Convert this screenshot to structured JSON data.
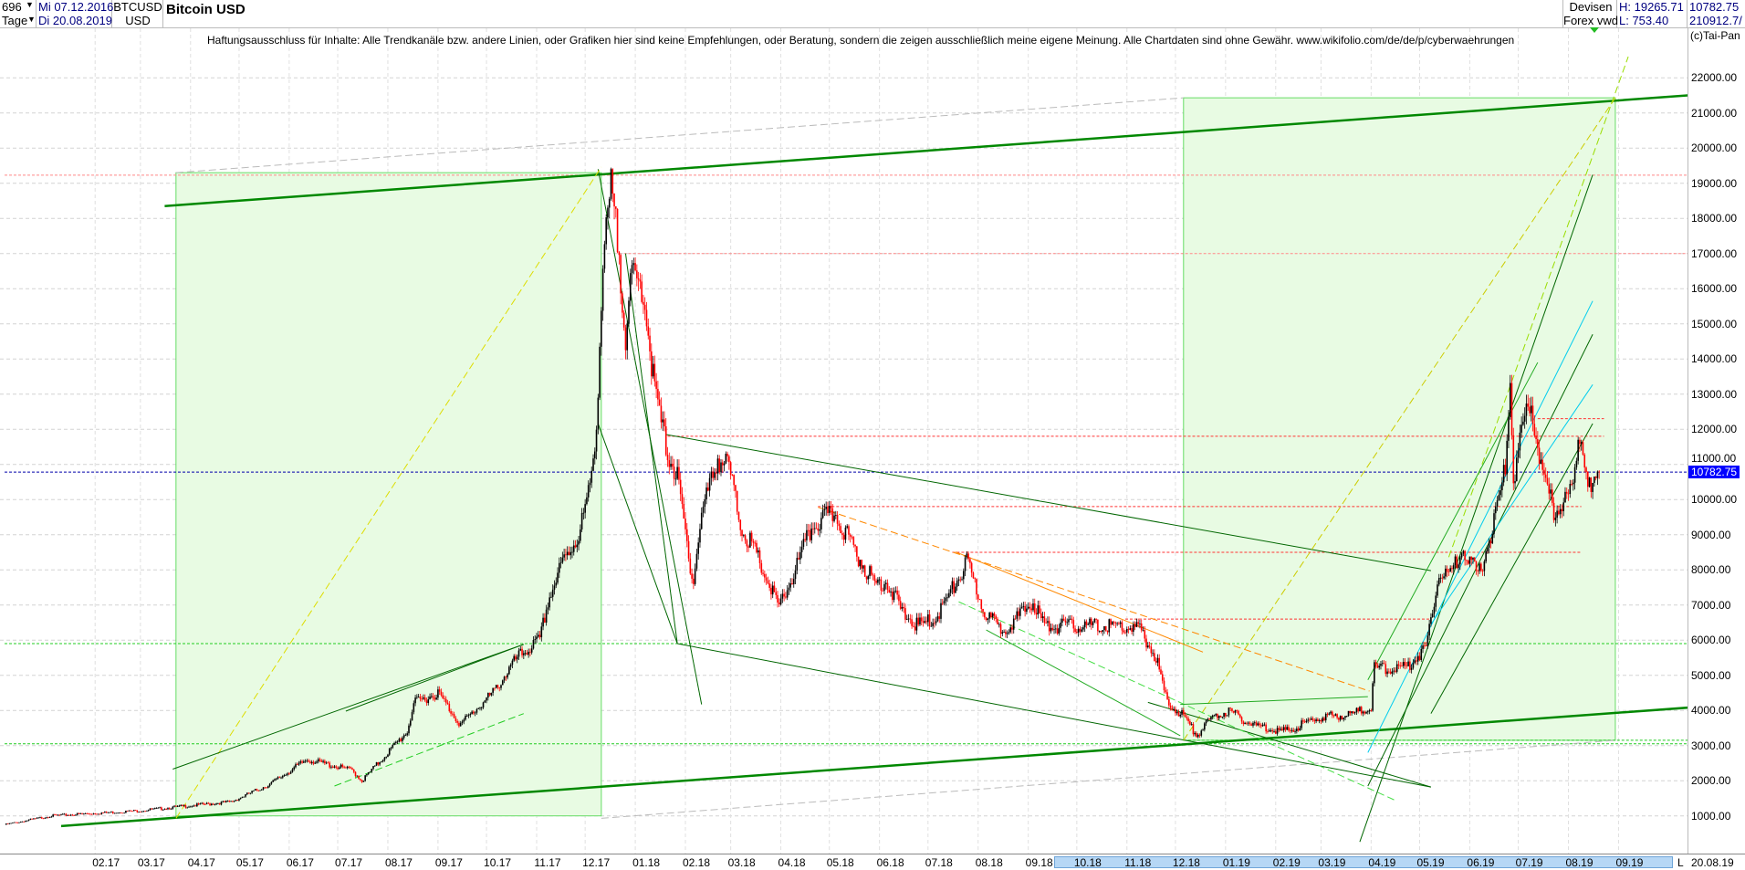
{
  "header": {
    "bar_count": "696",
    "period": "Tage",
    "start_date": "Mi 07.12.2016",
    "end_date": "Di 20.08.2019",
    "symbol": "BTCUSD",
    "currency": "USD",
    "title": "Bitcoin USD",
    "market": "Devisen",
    "source": "Forex vwd",
    "high": "H: 19265.71",
    "low": "L: 753.40",
    "last_price": "10782.75",
    "volume": "210912.7/",
    "copyright": "(c)Tai-Pan"
  },
  "disclaimer": "Haftungsausschluss für Inhalte: Alle Trendkanäle bzw. andere Linien, oder Grafiken hier sind keine Empfehlungen, oder Beratung, sondern die zeigen ausschließlich meine eigene Meinung. Alle Chartdaten sind ohne Gewähr.  www.wikifolio.com/de/de/p/cyberwaehrungen",
  "bottom_axis": {
    "end_label": "20.08.19",
    "scroll_marker": "L"
  },
  "chart_data": {
    "type": "candlestick",
    "title": "Bitcoin USD",
    "x_range": [
      "2016-12-07",
      "2019-08-20"
    ],
    "ylim": [
      0,
      23000
    ],
    "y_ticks": [
      "1000.00",
      "2000.00",
      "3000.00",
      "4000.00",
      "5000.00",
      "6000.00",
      "7000.00",
      "8000.00",
      "9000.00",
      "10000.00",
      "11000.00",
      "12000.00",
      "13000.00",
      "14000.00",
      "15000.00",
      "16000.00",
      "17000.00",
      "18000.00",
      "19000.00",
      "20000.00",
      "21000.00",
      "22000.00"
    ],
    "x_ticks": [
      {
        "label": "02.17",
        "date": "2017-02-01"
      },
      {
        "label": "03.17",
        "date": "2017-03-01"
      },
      {
        "label": "04.17",
        "date": "2017-04-01"
      },
      {
        "label": "05.17",
        "date": "2017-05-01"
      },
      {
        "label": "06.17",
        "date": "2017-06-01"
      },
      {
        "label": "07.17",
        "date": "2017-07-01"
      },
      {
        "label": "08.17",
        "date": "2017-08-01"
      },
      {
        "label": "09.17",
        "date": "2017-09-01"
      },
      {
        "label": "10.17",
        "date": "2017-10-01"
      },
      {
        "label": "11.17",
        "date": "2017-11-01"
      },
      {
        "label": "12.17",
        "date": "2017-12-01"
      },
      {
        "label": "01.18",
        "date": "2018-01-01"
      },
      {
        "label": "02.18",
        "date": "2018-02-01"
      },
      {
        "label": "03.18",
        "date": "2018-03-01"
      },
      {
        "label": "04.18",
        "date": "2018-04-01"
      },
      {
        "label": "05.18",
        "date": "2018-05-01"
      },
      {
        "label": "06.18",
        "date": "2018-06-01"
      },
      {
        "label": "07.18",
        "date": "2018-07-01"
      },
      {
        "label": "08.18",
        "date": "2018-08-01"
      },
      {
        "label": "09.18",
        "date": "2018-09-01"
      },
      {
        "label": "10.18",
        "date": "2018-10-01"
      },
      {
        "label": "11.18",
        "date": "2018-11-01"
      },
      {
        "label": "12.18",
        "date": "2018-12-01"
      },
      {
        "label": "01.19",
        "date": "2019-01-01"
      },
      {
        "label": "02.19",
        "date": "2019-02-01"
      },
      {
        "label": "03.19",
        "date": "2019-03-01"
      },
      {
        "label": "04.19",
        "date": "2019-04-01"
      },
      {
        "label": "05.19",
        "date": "2019-05-01"
      },
      {
        "label": "06.19",
        "date": "2019-06-01"
      },
      {
        "label": "07.19",
        "date": "2019-07-01"
      },
      {
        "label": "08.19",
        "date": "2019-08-01"
      },
      {
        "label": "09.19",
        "date": "2019-09-01"
      }
    ],
    "grid": true,
    "colors": {
      "up": "#000000",
      "down": "#ff0000",
      "last_price": "#0000ff"
    },
    "close_path": [
      [
        "2016-12-07",
        750
      ],
      [
        "2017-01-05",
        1000
      ],
      [
        "2017-03-01",
        1150
      ],
      [
        "2017-04-26",
        1400
      ],
      [
        "2017-05-20",
        1900
      ],
      [
        "2017-06-12",
        2600
      ],
      [
        "2017-07-10",
        2300
      ],
      [
        "2017-07-16",
        2000
      ],
      [
        "2017-07-30",
        2700
      ],
      [
        "2017-08-13",
        3400
      ],
      [
        "2017-08-17",
        4200
      ],
      [
        "2017-09-01",
        4500
      ],
      [
        "2017-09-15",
        3600
      ],
      [
        "2017-10-05",
        4500
      ],
      [
        "2017-10-20",
        5500
      ],
      [
        "2017-11-03",
        6000
      ],
      [
        "2017-11-08",
        7100
      ],
      [
        "2017-11-17",
        8200
      ],
      [
        "2017-11-27",
        9000
      ],
      [
        "2017-12-04",
        10300
      ],
      [
        "2017-12-08",
        12200
      ],
      [
        "2017-12-12",
        16600
      ],
      [
        "2017-12-17",
        18800
      ],
      [
        "2017-12-22",
        17000
      ],
      [
        "2017-12-26",
        14700
      ],
      [
        "2017-12-30",
        16300
      ],
      [
        "2018-01-06",
        16000
      ],
      [
        "2018-01-13",
        13100
      ],
      [
        "2018-01-20",
        11500
      ],
      [
        "2018-01-27",
        10600
      ],
      [
        "2018-02-03",
        8400
      ],
      [
        "2018-02-06",
        7700
      ],
      [
        "2018-02-11",
        9600
      ],
      [
        "2018-02-21",
        11200
      ],
      [
        "2018-02-28",
        10900
      ],
      [
        "2018-03-07",
        9300
      ],
      [
        "2018-03-17",
        8400
      ],
      [
        "2018-03-31",
        6900
      ],
      [
        "2018-04-10",
        8000
      ],
      [
        "2018-04-21",
        9300
      ],
      [
        "2018-05-05",
        9600
      ],
      [
        "2018-05-15",
        8700
      ],
      [
        "2018-05-29",
        7600
      ],
      [
        "2018-06-05",
        7700
      ],
      [
        "2018-06-15",
        6800
      ],
      [
        "2018-06-25",
        6400
      ],
      [
        "2018-07-05",
        6600
      ],
      [
        "2018-07-12",
        7100
      ],
      [
        "2018-07-25",
        8200
      ],
      [
        "2018-08-05",
        6800
      ],
      [
        "2018-08-15",
        6300
      ],
      [
        "2018-08-25",
        6600
      ],
      [
        "2018-09-04",
        7100
      ],
      [
        "2018-09-11",
        6400
      ],
      [
        "2018-09-28",
        6400
      ],
      [
        "2018-10-26",
        6400
      ],
      [
        "2018-11-09",
        6300
      ],
      [
        "2018-11-19",
        5500
      ],
      [
        "2018-11-26",
        4200
      ],
      [
        "2018-12-05",
        3900
      ],
      [
        "2018-12-14",
        3300
      ],
      [
        "2018-12-24",
        3800
      ],
      [
        "2019-01-03",
        4000
      ],
      [
        "2019-01-17",
        3600
      ],
      [
        "2019-02-07",
        3400
      ],
      [
        "2019-02-28",
        3800
      ],
      [
        "2019-03-20",
        3900
      ],
      [
        "2019-04-01",
        4100
      ],
      [
        "2019-04-03",
        5200
      ],
      [
        "2019-04-22",
        5200
      ],
      [
        "2019-05-05",
        5800
      ],
      [
        "2019-05-13",
        8000
      ],
      [
        "2019-05-20",
        7800
      ],
      [
        "2019-05-27",
        8700
      ],
      [
        "2019-06-06",
        7800
      ],
      [
        "2019-06-16",
        9300
      ],
      [
        "2019-06-23",
        10900
      ],
      [
        "2019-06-26",
        13400
      ],
      [
        "2019-06-28",
        10600
      ],
      [
        "2019-07-03",
        11800
      ],
      [
        "2019-07-09",
        12800
      ],
      [
        "2019-07-16",
        10600
      ],
      [
        "2019-07-23",
        9700
      ],
      [
        "2019-07-30",
        10000
      ],
      [
        "2019-08-04",
        10300
      ],
      [
        "2019-08-07",
        12000
      ],
      [
        "2019-08-12",
        11100
      ],
      [
        "2019-08-15",
        10000
      ],
      [
        "2019-08-20",
        10782.75
      ]
    ],
    "last_price": 10782.75,
    "boxes": [
      {
        "from": [
          "2017-03-23",
          19300
        ],
        "to": [
          "2017-12-11",
          1000
        ],
        "color": "#e8fbe3",
        "border": "#66dd66"
      },
      {
        "from": [
          "2018-12-06",
          21430
        ],
        "to": [
          "2019-08-30",
          3150
        ],
        "color": "#e8fbe3",
        "border": "#66dd66"
      }
    ],
    "hlines": [
      {
        "price": 19230,
        "from": "2016-12-07",
        "to": "2019-10-18",
        "color": "#ff8888",
        "style": "dot"
      },
      {
        "price": 17000,
        "from": "2017-12-25",
        "to": "2019-10-18",
        "color": "#ff8888",
        "style": "dot"
      },
      {
        "price": 11800,
        "from": "2018-01-21",
        "to": "2019-08-23",
        "color": "#ff3333",
        "style": "dot"
      },
      {
        "price": 12300,
        "from": "2019-07-13",
        "to": "2019-08-23",
        "color": "#ff3333",
        "style": "dot"
      },
      {
        "price": 9800,
        "from": "2018-04-24",
        "to": "2019-08-09",
        "color": "#ff3333",
        "style": "dot"
      },
      {
        "price": 8500,
        "from": "2018-07-16",
        "to": "2019-08-09",
        "color": "#ff3333",
        "style": "dot"
      },
      {
        "price": 6600,
        "from": "2018-10-31",
        "to": "2019-05-08",
        "color": "#ff3333",
        "style": "dot"
      },
      {
        "price": 5900,
        "from": "2016-12-07",
        "to": "2019-10-25",
        "color": "#22cc22",
        "style": "dot"
      },
      {
        "price": 3050,
        "from": "2016-12-07",
        "to": "2019-10-25",
        "color": "#22cc22",
        "style": "dot"
      },
      {
        "price": 3150,
        "from": "2018-12-06",
        "to": "2019-10-25",
        "color": "#22cc22",
        "style": "dot"
      },
      {
        "price": 10782.75,
        "from": "2016-12-07",
        "to": "2019-10-25",
        "color": "#0000aa",
        "style": "dot"
      }
    ],
    "trendlines": [
      {
        "from": [
          "2017-03-16",
          18350
        ],
        "to": [
          "2019-11-19",
          21620
        ],
        "color": "#008800",
        "width": 2.5,
        "style": "solid"
      },
      {
        "from": [
          "2017-01-11",
          710
        ],
        "to": [
          "2019-11-19",
          4200
        ],
        "color": "#008800",
        "width": 2.5,
        "style": "solid"
      },
      {
        "from": [
          "2017-03-23",
          19300
        ],
        "to": [
          "2018-12-06",
          21430
        ],
        "color": "#bbbbbb",
        "width": 1,
        "style": "dash"
      },
      {
        "from": [
          "2017-12-11",
          930
        ],
        "to": [
          "2019-08-30",
          3150
        ],
        "color": "#bbbbbb",
        "width": 1,
        "style": "dash"
      },
      {
        "from": [
          "2017-12-09",
          19400
        ],
        "to": [
          "2018-02-11",
          4170
        ],
        "color": "#006600",
        "width": 1,
        "style": "solid"
      },
      {
        "from": [
          "2017-12-09",
          12160
        ],
        "to": [
          "2018-01-27",
          5900
        ],
        "color": "#006600",
        "width": 1,
        "style": "solid"
      },
      {
        "from": [
          "2017-12-26",
          17000
        ],
        "to": [
          "2018-01-27",
          5900
        ],
        "color": "#006600",
        "width": 1,
        "style": "solid"
      },
      {
        "from": [
          "2018-01-20",
          11850
        ],
        "to": [
          "2019-05-08",
          7975
        ],
        "color": "#006600",
        "width": 1,
        "style": "solid"
      },
      {
        "from": [
          "2018-01-27",
          5900
        ],
        "to": [
          "2019-05-08",
          1820
        ],
        "color": "#006600",
        "width": 1,
        "style": "solid"
      },
      {
        "from": [
          "2017-03-23",
          930
        ],
        "to": [
          "2017-12-11",
          19460
        ],
        "color": "#dddd00",
        "width": 1,
        "style": "dash"
      },
      {
        "from": [
          "2018-12-06",
          3150
        ],
        "to": [
          "2019-08-30",
          21430
        ],
        "color": "#cccc00",
        "width": 1,
        "style": "dash"
      },
      {
        "from": [
          "2019-05-19",
          8360
        ],
        "to": [
          "2019-09-07",
          22600
        ],
        "color": "#99dd00",
        "width": 1,
        "style": "dash"
      },
      {
        "from": [
          "2019-03-25",
          260
        ],
        "to": [
          "2019-08-16",
          19240
        ],
        "color": "#006600",
        "width": 1,
        "style": "solid"
      },
      {
        "from": [
          "2019-03-30",
          1850
        ],
        "to": [
          "2019-08-16",
          14700
        ],
        "color": "#006600",
        "width": 1,
        "style": "solid"
      },
      {
        "from": [
          "2019-05-08",
          3910
        ],
        "to": [
          "2019-08-16",
          12160
        ],
        "color": "#006600",
        "width": 1,
        "style": "solid"
      },
      {
        "from": [
          "2019-03-30",
          4870
        ],
        "to": [
          "2019-07-13",
          13900
        ],
        "color": "#22aa22",
        "width": 1,
        "style": "solid"
      },
      {
        "from": [
          "2019-03-30",
          2800
        ],
        "to": [
          "2019-08-16",
          15650
        ],
        "color": "#00ccee",
        "width": 1,
        "style": "solid"
      },
      {
        "from": [
          "2019-05-08",
          6450
        ],
        "to": [
          "2019-08-16",
          13270
        ],
        "color": "#00ccee",
        "width": 1,
        "style": "solid"
      },
      {
        "from": [
          "2018-07-18",
          8510
        ],
        "to": [
          "2018-12-18",
          5660
        ],
        "color": "#ff8800",
        "width": 1,
        "style": "solid"
      },
      {
        "from": [
          "2018-04-24",
          9780
        ],
        "to": [
          "2019-03-31",
          4550
        ],
        "color": "#ff8800",
        "width": 1,
        "style": "dash"
      },
      {
        "from": [
          "2017-03-21",
          2330
        ],
        "to": [
          "2017-10-24",
          5880
        ],
        "color": "#006600",
        "width": 1,
        "style": "solid"
      },
      {
        "from": [
          "2017-07-06",
          3980
        ],
        "to": [
          "2017-10-24",
          5880
        ],
        "color": "#006600",
        "width": 1,
        "style": "solid"
      },
      {
        "from": [
          "2017-06-29",
          1850
        ],
        "to": [
          "2017-10-24",
          3910
        ],
        "color": "#22cc22",
        "width": 1,
        "style": "dash"
      },
      {
        "from": [
          "2018-11-14",
          4230
        ],
        "to": [
          "2019-05-08",
          1820
        ],
        "color": "#006600",
        "width": 1,
        "style": "solid"
      },
      {
        "from": [
          "2018-07-20",
          7090
        ],
        "to": [
          "2019-04-16",
          1440
        ],
        "color": "#44dd44",
        "width": 1,
        "style": "dash"
      },
      {
        "from": [
          "2018-08-06",
          6290
        ],
        "to": [
          "2018-12-04",
          3280
        ],
        "color": "#22aa22",
        "width": 1,
        "style": "solid"
      },
      {
        "from": [
          "2018-12-04",
          4170
        ],
        "to": [
          "2019-03-30",
          4390
        ],
        "color": "#22aa22",
        "width": 1,
        "style": "solid"
      }
    ]
  }
}
